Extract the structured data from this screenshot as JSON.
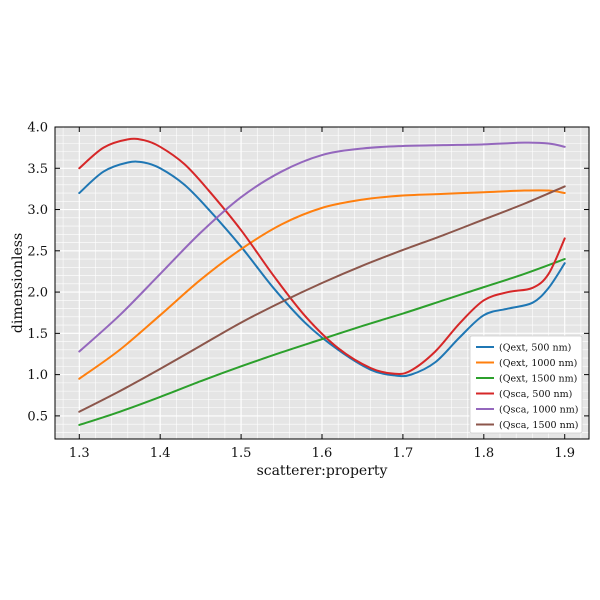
{
  "chart_data": {
    "type": "line",
    "title": "",
    "xlabel": "scatterer:property",
    "ylabel": "dimensionless",
    "xlim": [
      1.27,
      1.93
    ],
    "ylim": [
      0.22,
      4.0
    ],
    "xticks": [
      "1.3",
      "1.4",
      "1.5",
      "1.6",
      "1.7",
      "1.8",
      "1.9"
    ],
    "yticks": [
      "0.5",
      "1.0",
      "1.5",
      "2.0",
      "2.5",
      "3.0",
      "3.5",
      "4.0"
    ],
    "grid": true,
    "legend_position": "lower-right",
    "background": "#e5e5e5",
    "series": [
      {
        "name": "(Qext, 500 nm)",
        "color": "#1f77b4",
        "x": [
          1.3,
          1.33,
          1.36,
          1.38,
          1.4,
          1.43,
          1.46,
          1.5,
          1.54,
          1.58,
          1.62,
          1.66,
          1.69,
          1.71,
          1.74,
          1.77,
          1.8,
          1.83,
          1.86,
          1.88,
          1.9
        ],
        "y": [
          3.2,
          3.46,
          3.57,
          3.57,
          3.5,
          3.3,
          3.0,
          2.55,
          2.05,
          1.62,
          1.3,
          1.06,
          0.99,
          1.0,
          1.15,
          1.45,
          1.72,
          1.8,
          1.87,
          2.05,
          2.35
        ]
      },
      {
        "name": "(Qext, 1000 nm)",
        "color": "#ff7f0e",
        "x": [
          1.3,
          1.35,
          1.4,
          1.45,
          1.5,
          1.55,
          1.6,
          1.65,
          1.7,
          1.75,
          1.8,
          1.85,
          1.88,
          1.9
        ],
        "y": [
          0.95,
          1.3,
          1.72,
          2.15,
          2.52,
          2.82,
          3.02,
          3.12,
          3.17,
          3.19,
          3.21,
          3.23,
          3.23,
          3.2
        ]
      },
      {
        "name": "(Qext, 1500 nm)",
        "color": "#2ca02c",
        "x": [
          1.3,
          1.35,
          1.4,
          1.45,
          1.5,
          1.55,
          1.6,
          1.65,
          1.7,
          1.75,
          1.8,
          1.85,
          1.9
        ],
        "y": [
          0.39,
          0.55,
          0.73,
          0.92,
          1.1,
          1.27,
          1.43,
          1.59,
          1.74,
          1.9,
          2.06,
          2.22,
          2.4
        ]
      },
      {
        "name": "(Qsca, 500 nm)",
        "color": "#d62728",
        "x": [
          1.3,
          1.33,
          1.36,
          1.38,
          1.4,
          1.43,
          1.46,
          1.5,
          1.54,
          1.58,
          1.62,
          1.66,
          1.69,
          1.71,
          1.74,
          1.77,
          1.8,
          1.83,
          1.86,
          1.88,
          1.9
        ],
        "y": [
          3.5,
          3.75,
          3.85,
          3.84,
          3.76,
          3.55,
          3.23,
          2.75,
          2.2,
          1.7,
          1.32,
          1.08,
          1.01,
          1.05,
          1.28,
          1.62,
          1.9,
          2.0,
          2.05,
          2.22,
          2.65
        ]
      },
      {
        "name": "(Qsca, 1000 nm)",
        "color": "#9467bd",
        "x": [
          1.3,
          1.35,
          1.4,
          1.45,
          1.5,
          1.55,
          1.6,
          1.65,
          1.7,
          1.75,
          1.8,
          1.85,
          1.88,
          1.9
        ],
        "y": [
          1.28,
          1.72,
          2.22,
          2.72,
          3.15,
          3.46,
          3.66,
          3.74,
          3.77,
          3.78,
          3.79,
          3.81,
          3.8,
          3.76
        ]
      },
      {
        "name": "(Qsca, 1500 nm)",
        "color": "#8c564b",
        "x": [
          1.3,
          1.35,
          1.4,
          1.45,
          1.5,
          1.55,
          1.6,
          1.65,
          1.7,
          1.75,
          1.8,
          1.85,
          1.9
        ],
        "y": [
          0.55,
          0.8,
          1.07,
          1.35,
          1.63,
          1.88,
          2.11,
          2.32,
          2.51,
          2.69,
          2.88,
          3.07,
          3.28
        ]
      }
    ]
  }
}
